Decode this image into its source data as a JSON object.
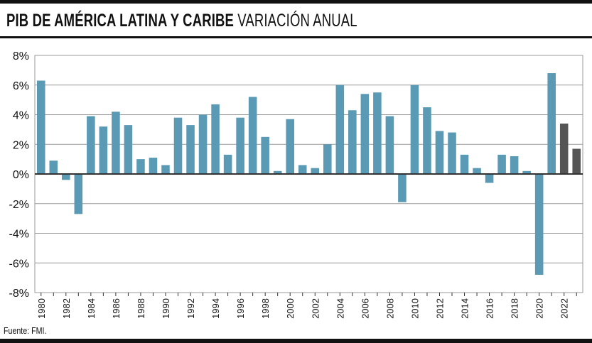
{
  "header": {
    "title_main": "PIB DE AMÉRICA LATINA Y CARIBE",
    "title_sub": "VARIACIÓN ANUAL"
  },
  "footer": {
    "source": "Fuente: FMI."
  },
  "colors": {
    "historical_bar": "#5b9ab5",
    "forecast_bar": "#555555",
    "gridline": "#999999",
    "zero_line": "#333333",
    "rule": "#111111"
  },
  "chart_data": {
    "type": "bar",
    "title": "PIB DE AMÉRICA LATINA Y CARIBE VARIACIÓN ANUAL",
    "xlabel": "",
    "ylabel": "",
    "ylim": [
      -8,
      8
    ],
    "yticks": [
      8,
      6,
      4,
      2,
      0,
      -2,
      -4,
      -6,
      -8
    ],
    "ytick_labels": [
      "8%",
      "6%",
      "4%",
      "2%",
      "0%",
      "-2%",
      "-4%",
      "-6%",
      "-8%"
    ],
    "grid": true,
    "legend": "none",
    "categories": [
      "1980",
      "1981",
      "1982",
      "1983",
      "1984",
      "1985",
      "1986",
      "1987",
      "1988",
      "1989",
      "1990",
      "1991",
      "1992",
      "1993",
      "1994",
      "1995",
      "1996",
      "1997",
      "1998",
      "1999",
      "2000",
      "2001",
      "2002",
      "2003",
      "2004",
      "2005",
      "2006",
      "2007",
      "2008",
      "2009",
      "2010",
      "2011",
      "2012",
      "2013",
      "2014",
      "2015",
      "2016",
      "2017",
      "2018",
      "2019",
      "2020",
      "2021",
      "2022",
      "2023"
    ],
    "xtick_labels": [
      "1980",
      "1982",
      "1984",
      "1986",
      "1988",
      "1990",
      "1992",
      "1994",
      "1996",
      "1998",
      "2000",
      "2002",
      "2004",
      "2006",
      "2008",
      "2010",
      "2012",
      "2014",
      "2016",
      "2018",
      "2020",
      "2022"
    ],
    "values": [
      6.3,
      0.9,
      -0.4,
      -2.7,
      3.9,
      3.2,
      4.2,
      3.3,
      1.0,
      1.1,
      0.6,
      3.8,
      3.3,
      4.0,
      4.7,
      1.3,
      3.8,
      5.2,
      2.5,
      0.2,
      3.7,
      0.6,
      0.4,
      2.0,
      6.0,
      4.3,
      5.4,
      5.5,
      3.9,
      -1.9,
      6.0,
      4.5,
      2.9,
      2.8,
      1.3,
      0.4,
      -0.6,
      1.3,
      1.2,
      0.2,
      -6.8,
      6.8,
      3.4,
      1.7
    ],
    "forecast_from": "2022"
  }
}
